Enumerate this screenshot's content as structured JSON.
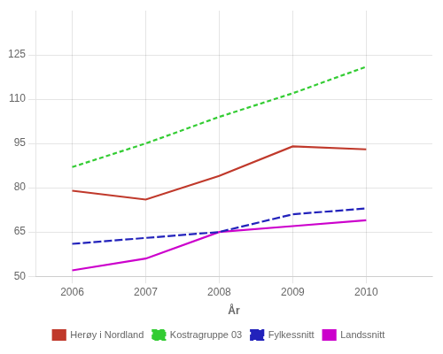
{
  "chart_data": {
    "type": "line",
    "xlabel": "År",
    "x": [
      2006,
      2007,
      2008,
      2009,
      2010
    ],
    "series": [
      {
        "name": "Herøy i Nordland",
        "color": "#c0392b",
        "values": [
          79,
          76,
          84,
          94,
          93
        ],
        "line_style": "solid"
      },
      {
        "name": "Kostragruppe 03",
        "color": "#33cc33",
        "values": [
          87,
          95,
          104,
          112,
          121
        ],
        "line_style": "dashed"
      },
      {
        "name": "Fylkessnitt",
        "color": "#2222bb",
        "values": [
          61,
          63,
          65,
          71,
          73
        ],
        "line_style": "long_dashed"
      },
      {
        "name": "Landssnitt",
        "color": "#cc00cc",
        "values": [
          52,
          56,
          65,
          67,
          69
        ],
        "line_style": "solid"
      }
    ],
    "xlim": [
      2005.5,
      2010.9
    ],
    "xticks": [
      2006,
      2007,
      2008,
      2009,
      2010
    ],
    "ylim": [
      50,
      140
    ],
    "yticks": [
      50,
      65,
      80,
      95,
      110,
      125
    ],
    "grid": true,
    "legend": "bottom"
  }
}
